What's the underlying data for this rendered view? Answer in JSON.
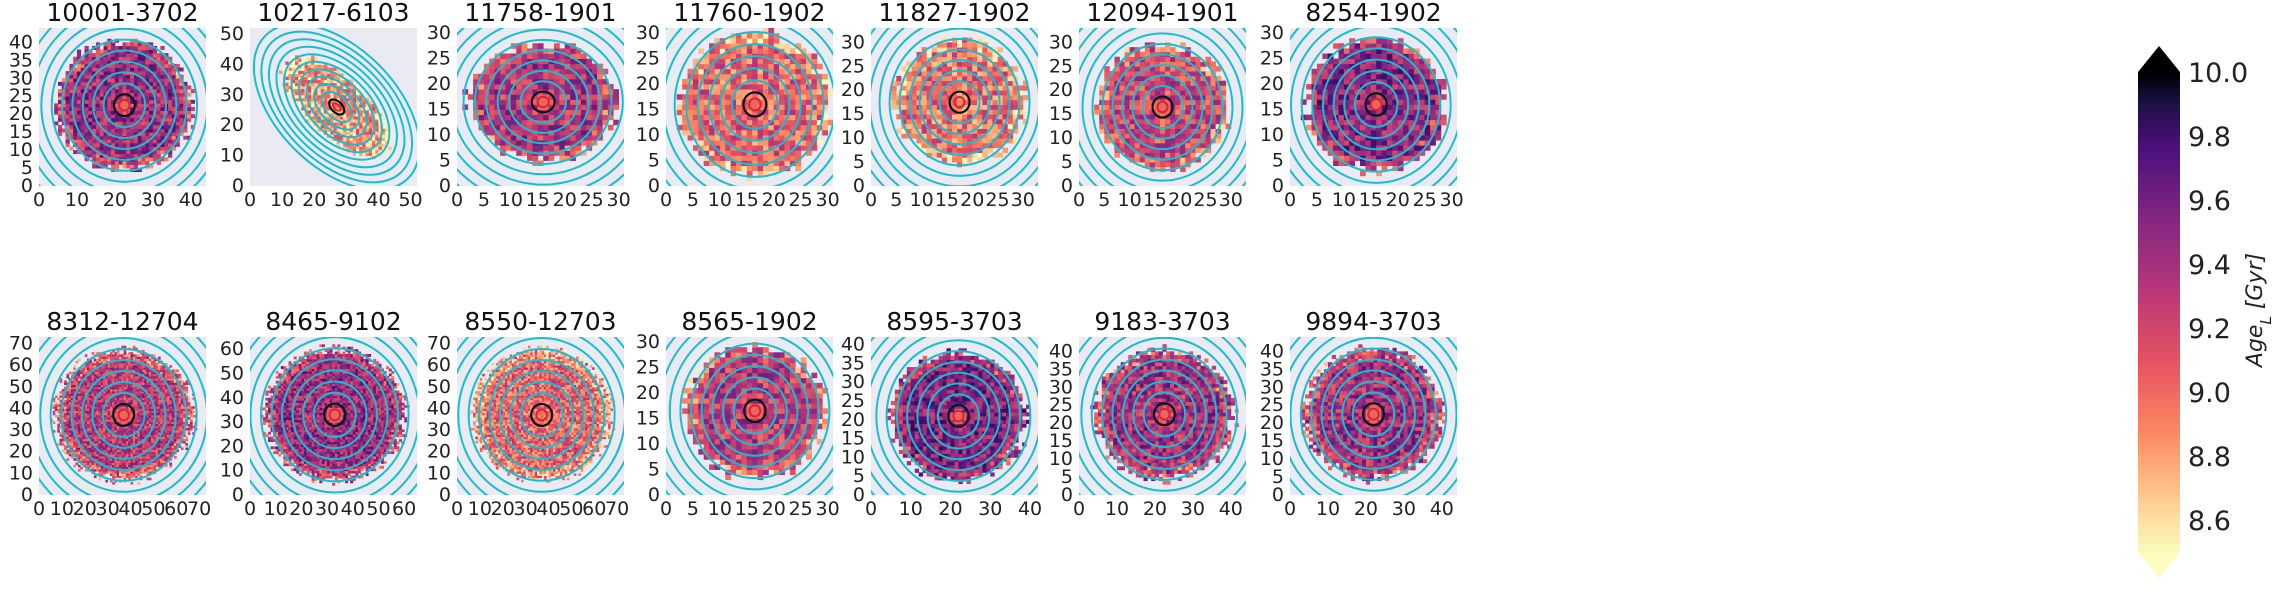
{
  "chart_data": {
    "type": "heatmap",
    "panels": [
      {
        "title": "10001-3702",
        "xticks": [
          "0",
          "10",
          "20",
          "30",
          "40"
        ],
        "yticks": [
          "0",
          "5",
          "10",
          "15",
          "20",
          "25",
          "30",
          "35",
          "40"
        ],
        "xlim": [
          0,
          44
        ],
        "ylim": [
          0,
          44
        ],
        "center": [
          22.5,
          22.5
        ],
        "radius": 18,
        "shape": "round",
        "mean_age": 9.45
      },
      {
        "title": "10217-6103",
        "xticks": [
          "0",
          "10",
          "20",
          "30",
          "40",
          "50"
        ],
        "yticks": [
          "0",
          "10",
          "20",
          "30",
          "40",
          "50"
        ],
        "xlim": [
          0,
          52
        ],
        "ylim": [
          0,
          52
        ],
        "center": [
          27,
          26
        ],
        "radius": 17,
        "shape": "tilted",
        "mean_age": 8.85
      },
      {
        "title": "11758-1901",
        "xticks": [
          "0",
          "5",
          "10",
          "15",
          "20",
          "25",
          "30"
        ],
        "yticks": [
          "0",
          "5",
          "10",
          "15",
          "20",
          "25",
          "30"
        ],
        "xlim": [
          0,
          31
        ],
        "ylim": [
          0,
          31
        ],
        "center": [
          16,
          16.5
        ],
        "radius": 12,
        "shape": "wide",
        "mean_age": 9.35
      },
      {
        "title": "11760-1902",
        "xticks": [
          "0",
          "5",
          "10",
          "15",
          "20",
          "25",
          "30"
        ],
        "yticks": [
          "0",
          "5",
          "10",
          "15",
          "20",
          "25",
          "30"
        ],
        "xlim": [
          0,
          31
        ],
        "ylim": [
          0,
          31
        ],
        "center": [
          16.5,
          16
        ],
        "radius": 14,
        "shape": "round",
        "mean_age": 9.05
      },
      {
        "title": "11827-1902",
        "xticks": [
          "0",
          "5",
          "10",
          "15",
          "20",
          "25",
          "30"
        ],
        "yticks": [
          "0",
          "5",
          "10",
          "15",
          "20",
          "25",
          "30"
        ],
        "xlim": [
          0,
          33
        ],
        "ylim": [
          0,
          33
        ],
        "center": [
          17.5,
          17.5
        ],
        "radius": 13,
        "shape": "round",
        "mean_age": 9.0
      },
      {
        "title": "12094-1901",
        "xticks": [
          "0",
          "5",
          "10",
          "15",
          "20",
          "25",
          "30"
        ],
        "yticks": [
          "0",
          "5",
          "10",
          "15",
          "20",
          "25",
          "30"
        ],
        "xlim": [
          0,
          33
        ],
        "ylim": [
          0,
          33
        ],
        "center": [
          16.5,
          16.5
        ],
        "radius": 13,
        "shape": "round",
        "mean_age": 9.2
      },
      {
        "title": "8254-1902",
        "xticks": [
          "0",
          "5",
          "10",
          "15",
          "20",
          "25",
          "30"
        ],
        "yticks": [
          "0",
          "5",
          "10",
          "15",
          "20",
          "25",
          "30"
        ],
        "xlim": [
          0,
          31
        ],
        "ylim": [
          0,
          31
        ],
        "center": [
          16,
          16
        ],
        "radius": 13,
        "shape": "round",
        "mean_age": 9.5
      },
      {
        "title": "8312-12704",
        "xticks": [
          "0",
          "10",
          "20",
          "30",
          "40",
          "50",
          "60",
          "70"
        ],
        "yticks": [
          "0",
          "10",
          "20",
          "30",
          "40",
          "50",
          "60",
          "70"
        ],
        "xlim": [
          0,
          73
        ],
        "ylim": [
          0,
          73
        ],
        "center": [
          37,
          37
        ],
        "radius": 30,
        "shape": "round",
        "mean_age": 9.3
      },
      {
        "title": "8465-9102",
        "xticks": [
          "0",
          "10",
          "20",
          "30",
          "40",
          "50",
          "60"
        ],
        "yticks": [
          "0",
          "10",
          "20",
          "30",
          "40",
          "50",
          "60"
        ],
        "xlim": [
          0,
          65
        ],
        "ylim": [
          0,
          65
        ],
        "center": [
          33,
          33
        ],
        "radius": 27,
        "shape": "round",
        "mean_age": 9.45
      },
      {
        "title": "8550-12703",
        "xticks": [
          "0",
          "10",
          "20",
          "30",
          "40",
          "50",
          "60",
          "70"
        ],
        "yticks": [
          "0",
          "10",
          "20",
          "30",
          "40",
          "50",
          "60",
          "70"
        ],
        "xlim": [
          0,
          73
        ],
        "ylim": [
          0,
          73
        ],
        "center": [
          37,
          37
        ],
        "radius": 30,
        "shape": "round",
        "mean_age": 9.05
      },
      {
        "title": "8565-1902",
        "xticks": [
          "0",
          "5",
          "10",
          "15",
          "20",
          "25",
          "30"
        ],
        "yticks": [
          "0",
          "5",
          "10",
          "15",
          "20",
          "25",
          "30"
        ],
        "xlim": [
          0,
          31
        ],
        "ylim": [
          0,
          31
        ],
        "center": [
          16.5,
          16.5
        ],
        "radius": 13,
        "shape": "round",
        "mean_age": 9.3
      },
      {
        "title": "8595-3703",
        "xticks": [
          "0",
          "10",
          "20",
          "30",
          "40"
        ],
        "yticks": [
          "0",
          "5",
          "10",
          "15",
          "20",
          "25",
          "30",
          "35",
          "40"
        ],
        "xlim": [
          0,
          42
        ],
        "ylim": [
          0,
          42
        ],
        "center": [
          22,
          21
        ],
        "radius": 17,
        "shape": "round",
        "mean_age": 9.55
      },
      {
        "title": "9183-3703",
        "xticks": [
          "0",
          "10",
          "20",
          "30",
          "40"
        ],
        "yticks": [
          "0",
          "5",
          "10",
          "15",
          "20",
          "25",
          "30",
          "35",
          "40"
        ],
        "xlim": [
          0,
          44
        ],
        "ylim": [
          0,
          44
        ],
        "center": [
          22.5,
          22.5
        ],
        "radius": 18,
        "shape": "round",
        "mean_age": 9.4
      },
      {
        "title": "9894-3703",
        "xticks": [
          "0",
          "10",
          "20",
          "30",
          "40"
        ],
        "yticks": [
          "0",
          "5",
          "10",
          "15",
          "20",
          "25",
          "30",
          "35",
          "40"
        ],
        "xlim": [
          0,
          44
        ],
        "ylim": [
          0,
          44
        ],
        "center": [
          22,
          22.5
        ],
        "radius": 18,
        "shape": "round",
        "mean_age": 9.4
      }
    ],
    "colorbar": {
      "label": "Age_L [Gyr]",
      "label_main": "Age",
      "label_sub": "L",
      "label_unit": "[Gyr]",
      "ticks": [
        "10.0",
        "9.8",
        "9.6",
        "9.4",
        "9.2",
        "9.0",
        "8.8",
        "8.6"
      ],
      "range": [
        8.5,
        10.0
      ],
      "extend": "both",
      "colormap": "magma_r"
    },
    "contour_colors": {
      "outer": "#17becf",
      "inner": "#111111",
      "inner_center": "#d62728"
    },
    "background_color": "#eaeaf2"
  }
}
